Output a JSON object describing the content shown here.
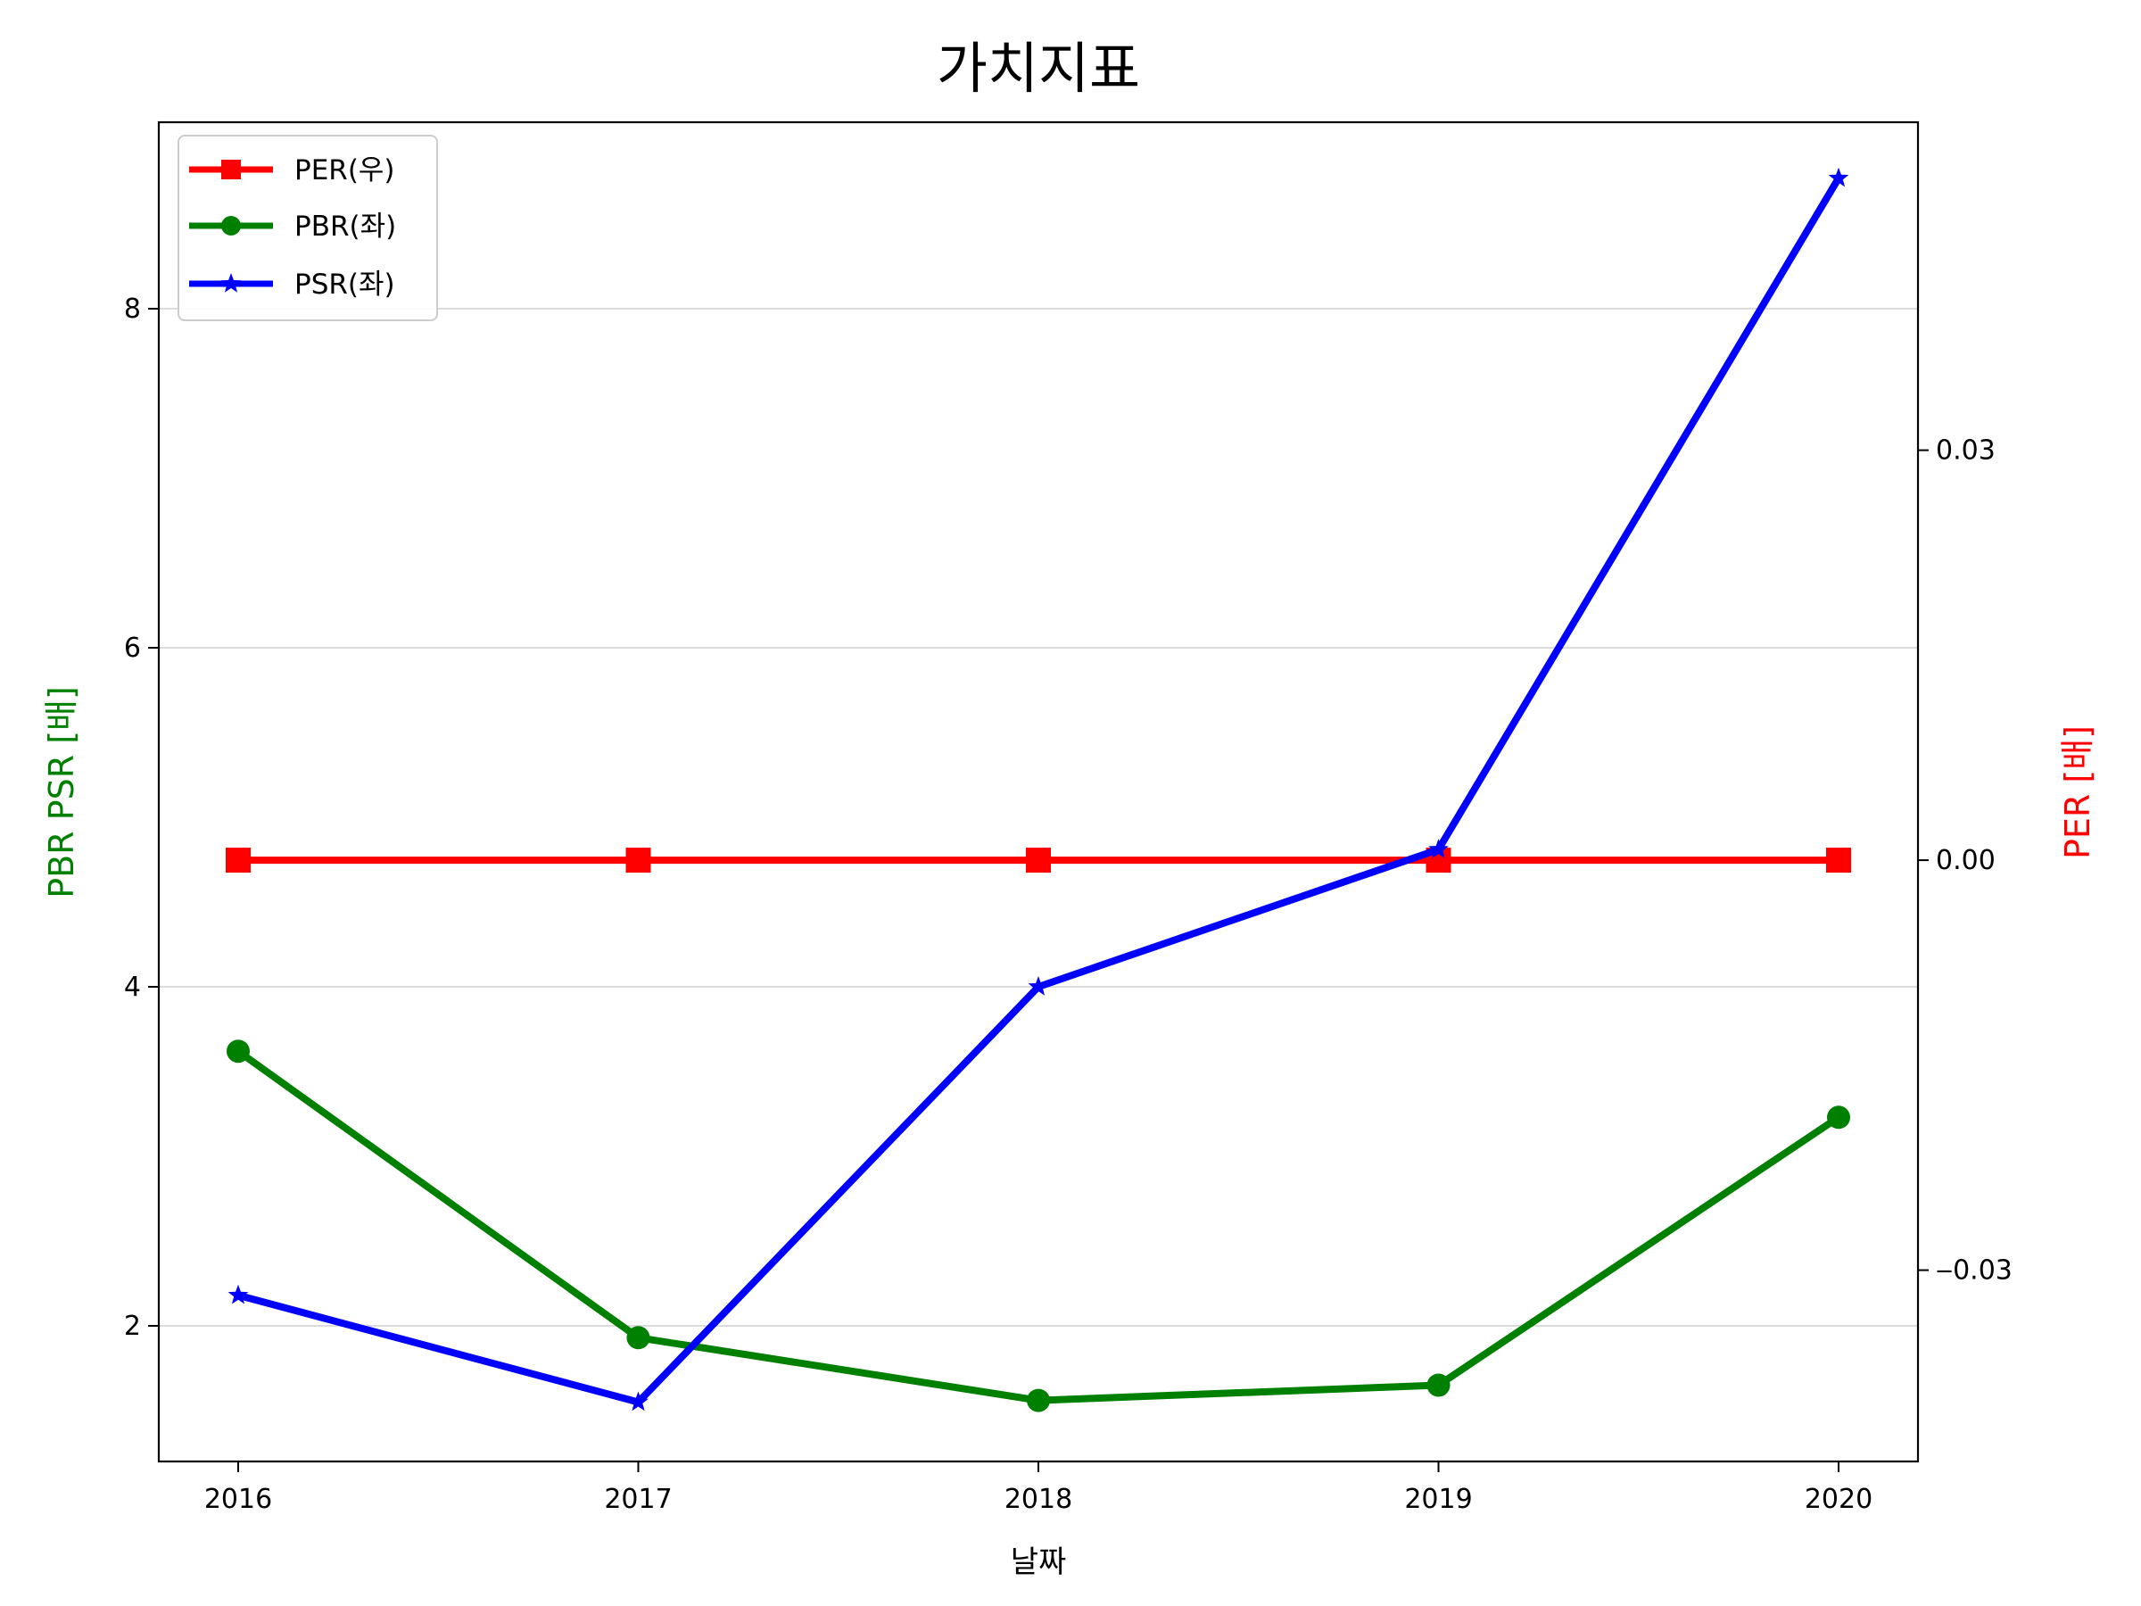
{
  "chart_data": {
    "type": "line",
    "title": "가치지표",
    "xlabel": "날짜",
    "ylabel_left": "PBR PSR [배]",
    "ylabel_right": "PER [배]",
    "categories": [
      "2016",
      "2017",
      "2018",
      "2019",
      "2020"
    ],
    "left_axis": {
      "ylim": [
        1.2,
        9.1
      ],
      "ticks": [
        2,
        4,
        6,
        8
      ],
      "tick_labels": [
        "2",
        "4",
        "6",
        "8"
      ],
      "grid": true,
      "label_color": "#008000"
    },
    "right_axis": {
      "ylim": [
        -0.044,
        0.054
      ],
      "ticks": [
        -0.03,
        0.0,
        0.03
      ],
      "tick_labels": [
        "‒0.03",
        "0.00",
        "0.03"
      ],
      "label_color": "#ff0000"
    },
    "series": [
      {
        "name": "PER(우)",
        "axis": "right",
        "color": "#ff0000",
        "marker": "square",
        "values": [
          0,
          0,
          0,
          0,
          0
        ]
      },
      {
        "name": "PBR(좌)",
        "axis": "left",
        "color": "#008000",
        "marker": "circle",
        "values": [
          3.62,
          1.93,
          1.56,
          1.65,
          3.23
        ]
      },
      {
        "name": "PSR(좌)",
        "axis": "left",
        "color": "#0000ff",
        "marker": "star",
        "values": [
          2.18,
          1.55,
          4.0,
          4.81,
          8.77
        ]
      }
    ],
    "legend_position": "upper-left"
  }
}
